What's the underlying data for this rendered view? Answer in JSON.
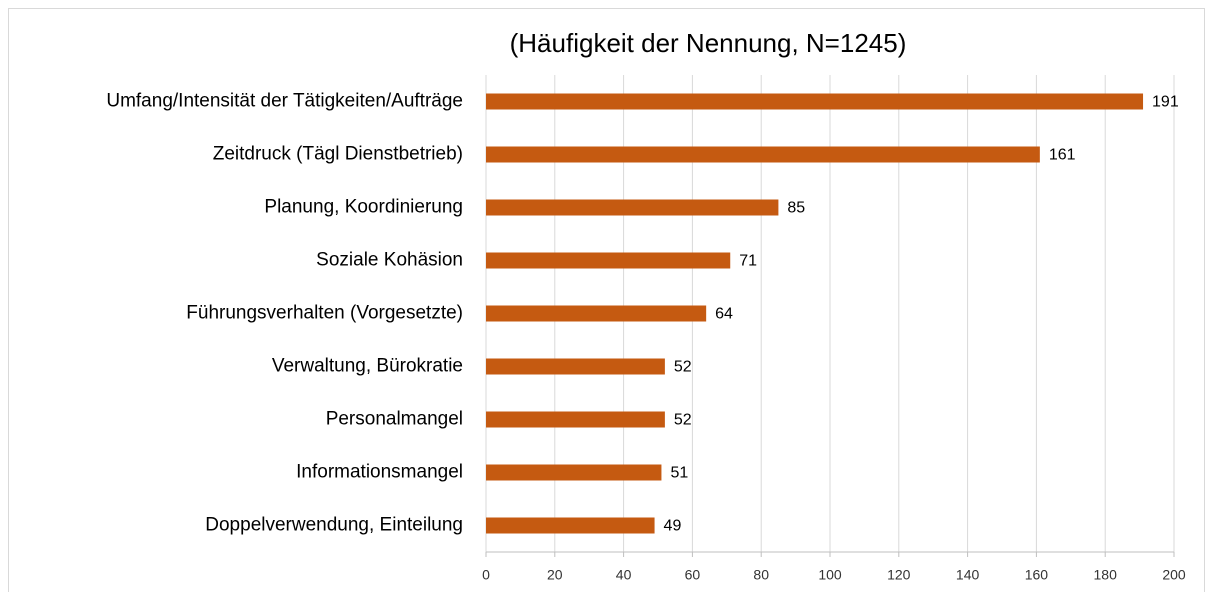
{
  "chart_data": {
    "type": "barh",
    "title": "(Häufigkeit der Nennung, N=1245)",
    "categories": [
      "Umfang/Intensität der Tätigkeiten/Aufträge",
      "Zeitdruck (Tägl Dienstbetrieb)",
      "Planung, Koordinierung",
      "Soziale Kohäsion",
      "Führungsverhalten (Vorgesetzte)",
      "Verwaltung, Bürokratie",
      "Personalmangel",
      "Informationsmangel",
      "Doppelverwendung, Einteilung"
    ],
    "values": [
      191,
      161,
      85,
      71,
      64,
      52,
      52,
      51,
      49
    ],
    "color": "#c55a11",
    "xlim": [
      0,
      200
    ],
    "xticks": [
      0,
      20,
      40,
      60,
      80,
      100,
      120,
      140,
      160,
      180,
      200
    ],
    "grid": true
  }
}
